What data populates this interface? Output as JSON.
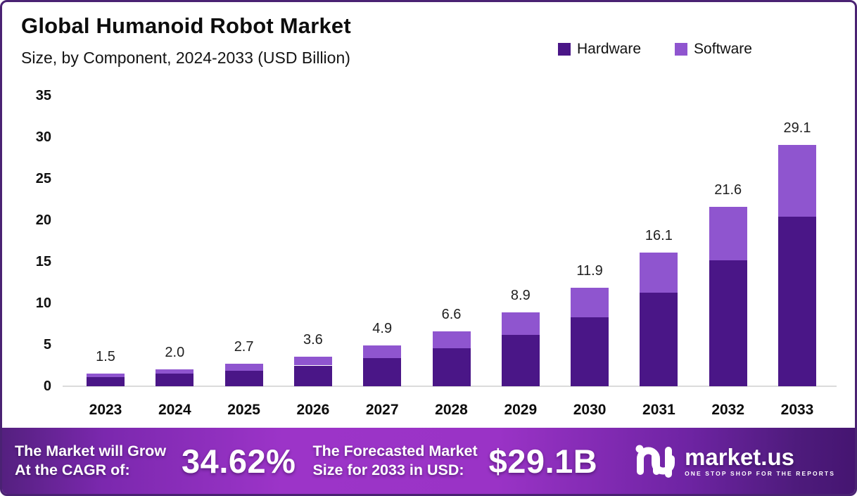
{
  "header": {
    "title": "Global Humanoid Robot Market",
    "subtitle": "Size, by Component, 2024-2033 (USD Billion)"
  },
  "legend": [
    {
      "label": "Hardware",
      "color": "#4A1687"
    },
    {
      "label": "Software",
      "color": "#8F55CF"
    }
  ],
  "chart_data": {
    "type": "bar",
    "stacked": true,
    "title": "Global Humanoid Robot Market",
    "subtitle": "Size, by Component, 2024-2033 (USD Billion)",
    "categories": [
      "2023",
      "2024",
      "2025",
      "2026",
      "2027",
      "2028",
      "2029",
      "2030",
      "2031",
      "2032",
      "2033"
    ],
    "series": [
      {
        "name": "Hardware",
        "color": "#4A1687",
        "values": [
          1.1,
          1.5,
          1.9,
          2.5,
          3.4,
          4.6,
          6.2,
          8.3,
          11.3,
          15.2,
          20.4
        ]
      },
      {
        "name": "Software",
        "color": "#8F55CF",
        "values": [
          0.4,
          0.5,
          0.8,
          1.1,
          1.5,
          2.0,
          2.7,
          3.6,
          4.8,
          6.4,
          8.7
        ]
      }
    ],
    "totals": [
      1.5,
      2.0,
      2.7,
      3.6,
      4.9,
      6.6,
      8.9,
      11.9,
      16.1,
      21.6,
      29.1
    ],
    "total_labels": [
      "1.5",
      "2.0",
      "2.7",
      "3.6",
      "4.9",
      "6.6",
      "8.9",
      "11.9",
      "16.1",
      "21.6",
      "29.1"
    ],
    "y_ticks": [
      0,
      5,
      10,
      15,
      20,
      25,
      30,
      35
    ],
    "ylim": [
      0,
      35
    ],
    "xlabel": "",
    "ylabel": "",
    "grid": false,
    "legend_position": "top-right"
  },
  "footer": {
    "cagr_label_line1": "The Market will Grow",
    "cagr_label_line2": "At the CAGR of:",
    "cagr_value": "34.62%",
    "forecast_label_line1": "The Forecasted Market",
    "forecast_label_line2": "Size for 2033 in USD:",
    "forecast_value": "$29.1B",
    "brand": {
      "name": "market.us",
      "tagline": "ONE STOP SHOP FOR THE REPORTS"
    }
  },
  "colors": {
    "border": "#4A2273",
    "hardware": "#4A1687",
    "software": "#8F55CF",
    "axis_line": "#DBDBDB",
    "banner_center": "#9C34C8",
    "banner_edge": "#451571"
  }
}
